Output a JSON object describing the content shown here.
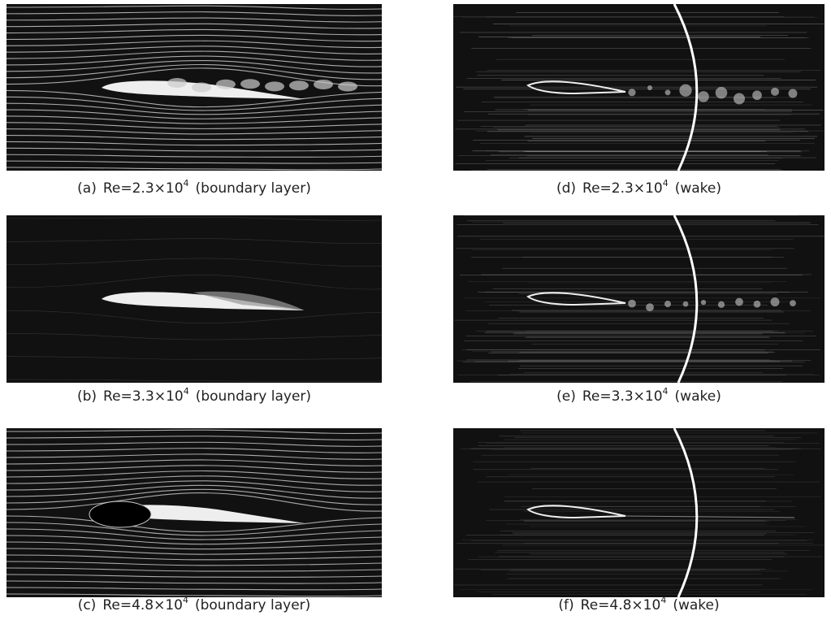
{
  "figure": {
    "panels": [
      {
        "label": "(a)",
        "prefix": "Re=2.3×10",
        "exponent": "4",
        "suffix": "(boundary layer)"
      },
      {
        "label": "(b)",
        "prefix": "Re=3.3×10",
        "exponent": "4",
        "suffix": "(boundary layer)"
      },
      {
        "label": "(c)",
        "prefix": "Re=4.8×10",
        "exponent": "4",
        "suffix": "(boundary layer)"
      },
      {
        "label": "(d)",
        "prefix": "Re=2.3×10",
        "exponent": "4",
        "suffix": "(wake)"
      },
      {
        "label": "(e)",
        "prefix": "Re=3.3×10",
        "exponent": "4",
        "suffix": "(wake)"
      },
      {
        "label": "(f)",
        "prefix": "Re=4.8×10",
        "exponent": "4",
        "suffix": "(wake)"
      }
    ]
  }
}
